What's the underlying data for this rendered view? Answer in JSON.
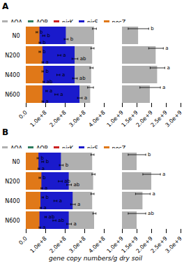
{
  "chart_data": [
    {
      "type": "bar",
      "orientation": "horizontal",
      "title": "A",
      "legend": "top",
      "categories": [
        "N0",
        "N200",
        "N400",
        "N600"
      ],
      "xlim": [
        0.0,
        400000000.0
      ],
      "xticks": [
        {
          "value": 0.0,
          "label": "0.0"
        },
        {
          "value": 100000000.0,
          "label": "1.0e+8"
        },
        {
          "value": 200000000.0,
          "label": "2.0e+8"
        },
        {
          "value": 300000000.0,
          "label": "3.0e+8"
        },
        {
          "value": 400000000.0,
          "label": "4.0e+8"
        }
      ],
      "series": [
        {
          "name": "AOA",
          "color": "#b0b0b0",
          "values": [
            350000000.0,
            340000000.0,
            335000000.0,
            330000000.0
          ],
          "error": [
            10000000.0,
            8000000.0,
            8000000.0,
            15000000.0
          ]
        },
        {
          "name": "AOB",
          "color": "#2e7d5e",
          "values": [
            55000000.0,
            70000000.0,
            85000000.0,
            105000000.0
          ],
          "error": [
            4000000.0,
            4000000.0,
            4000000.0,
            4000000.0
          ],
          "annotations": [
            "b",
            "b",
            "b",
            "a"
          ]
        },
        {
          "name": "nirK",
          "color": "#cc2222",
          "values": [
            90000000.0,
            170000000.0,
            165000000.0,
            155000000.0
          ],
          "error": [
            6000000.0,
            8000000.0,
            8000000.0,
            8000000.0
          ],
          "annotations": [
            "b",
            "a",
            "a",
            "a"
          ]
        },
        {
          "name": "nirS",
          "color": "#1a1acc",
          "values": [
            205000000.0,
            250000000.0,
            250000000.0,
            275000000.0
          ],
          "error": [
            10000000.0,
            15000000.0,
            12000000.0,
            12000000.0
          ],
          "annotations": [
            "b",
            "ab",
            "ab",
            "a"
          ]
        },
        {
          "name": "nosZ",
          "color": "#e07818",
          "values": [
            70000000.0,
            85000000.0,
            90000000.0,
            85000000.0
          ],
          "error": [
            4000000.0,
            4000000.0,
            4000000.0,
            4000000.0
          ],
          "annotations": [
            "b",
            "a",
            "ab",
            "a"
          ]
        }
      ]
    },
    {
      "type": "bar",
      "orientation": "horizontal",
      "categories": [
        "N0",
        "N200",
        "N400",
        "N600"
      ],
      "xlim": [
        1000000000.0,
        3000000000.0
      ],
      "xticks": [
        {
          "value": 1000000000.0,
          "label": "1.0e+9"
        },
        {
          "value": 1500000000.0,
          "label": "1.5e+9"
        },
        {
          "value": 2000000000.0,
          "label": "2.0e+9"
        },
        {
          "value": 2500000000.0,
          "label": "2.5e+9"
        },
        {
          "value": 3000000000.0,
          "label": "3.0e+9"
        }
      ],
      "series": [
        {
          "name": "AOA",
          "color": "#b0b0b0",
          "values": [
            1550000000.0,
            2150000000.0,
            2200000000.0,
            1950000000.0
          ],
          "error": [
            350000000.0,
            250000000.0,
            250000000.0,
            350000000.0
          ],
          "annotations": [
            "b",
            "a",
            "a",
            "a"
          ]
        }
      ]
    },
    {
      "type": "bar",
      "orientation": "horizontal",
      "title": "B",
      "legend": "top",
      "xlabel": "gene copy numbers/g dry soil",
      "categories": [
        "N0",
        "N200",
        "N400",
        "N600"
      ],
      "xlim": [
        0.0,
        400000000.0
      ],
      "xticks": [
        {
          "value": 0.0,
          "label": "0.0"
        },
        {
          "value": 100000000.0,
          "label": "1.0e+8"
        },
        {
          "value": 200000000.0,
          "label": "2.0e+8"
        },
        {
          "value": 300000000.0,
          "label": "3.0e+8"
        },
        {
          "value": 400000000.0,
          "label": "4.0e+8"
        }
      ],
      "series": [
        {
          "name": "AOA",
          "color": "#b0b0b0",
          "values": [
            340000000.0,
            345000000.0,
            340000000.0,
            350000000.0
          ],
          "error": [
            8000000.0,
            8000000.0,
            8000000.0,
            8000000.0
          ]
        },
        {
          "name": "AOB",
          "color": "#2e7d5e",
          "values": [
            60000000.0,
            70000000.0,
            85000000.0,
            100000000.0
          ],
          "error": [
            4000000.0,
            4000000.0,
            4000000.0,
            4000000.0
          ],
          "annotations": [
            "b",
            "b",
            "b",
            "ab"
          ]
        },
        {
          "name": "nirK",
          "color": "#cc2222",
          "values": [
            85000000.0,
            175000000.0,
            150000000.0,
            145000000.0
          ],
          "error": [
            5000000.0,
            10000000.0,
            8000000.0,
            8000000.0
          ],
          "annotations": [
            "b",
            "ab",
            "a",
            "ab"
          ]
        },
        {
          "name": "nirS",
          "color": "#1a1acc",
          "values": [
            180000000.0,
            220000000.0,
            240000000.0,
            220000000.0
          ],
          "error": [
            10000000.0,
            12000000.0,
            12000000.0,
            12000000.0
          ],
          "annotations": [
            "b",
            "ab",
            "a",
            "a"
          ]
        },
        {
          "name": "nosZ",
          "color": "#e07818",
          "values": [
            65000000.0,
            80000000.0,
            75000000.0,
            70000000.0
          ],
          "error": [
            4000000.0,
            4000000.0,
            4000000.0,
            4000000.0
          ],
          "annotations": [
            "a",
            "a",
            "a",
            "a"
          ]
        }
      ]
    },
    {
      "type": "bar",
      "orientation": "horizontal",
      "categories": [
        "N0",
        "N200",
        "N400",
        "N600"
      ],
      "xlim": [
        1000000000.0,
        3000000000.0
      ],
      "xticks": [
        {
          "value": 1000000000.0,
          "label": "1.0e+9"
        },
        {
          "value": 1500000000.0,
          "label": "1.5e+9"
        },
        {
          "value": 2000000000.0,
          "label": "2.0e+9"
        },
        {
          "value": 2500000000.0,
          "label": "2.5e+9"
        },
        {
          "value": 3000000000.0,
          "label": "3.0e+9"
        }
      ],
      "series": [
        {
          "name": "AOA",
          "color": "#b0b0b0",
          "values": [
            1500000000.0,
            2000000000.0,
            1700000000.0,
            1500000000.0
          ],
          "error": [
            300000000.0,
            300000000.0,
            250000000.0,
            300000000.0
          ],
          "annotations": [
            "b",
            "a",
            "a",
            "ab"
          ]
        }
      ]
    }
  ]
}
